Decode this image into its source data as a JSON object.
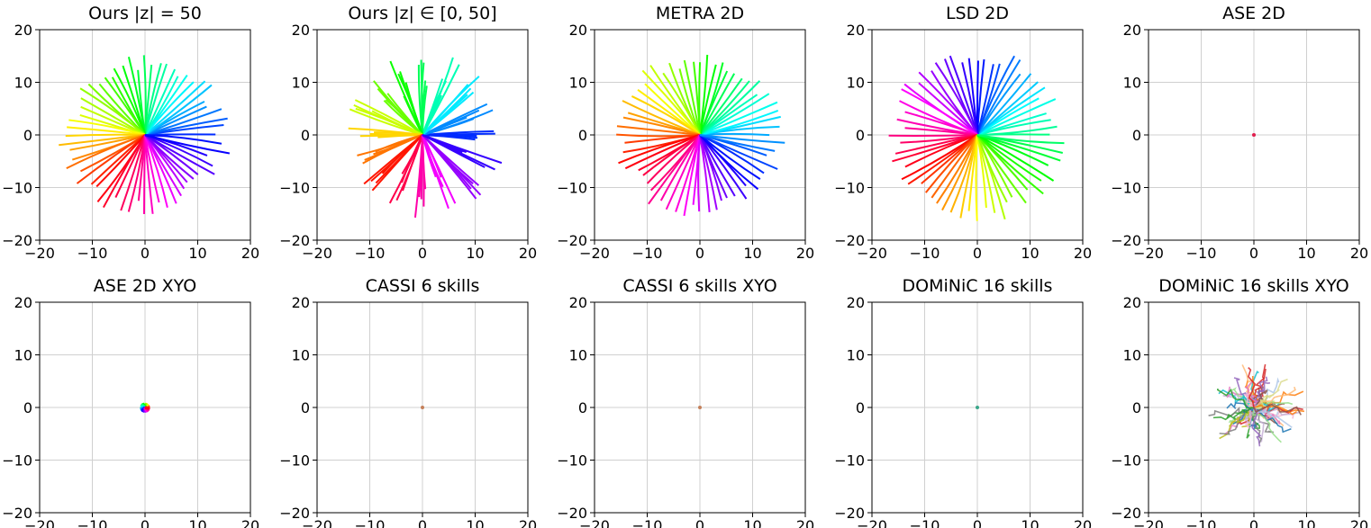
{
  "figure": {
    "panel_count": 10,
    "axis_ticks": [
      -20,
      -10,
      0,
      10,
      20
    ],
    "tick_labels": [
      "−20",
      "−10",
      "0",
      "10",
      "20"
    ]
  },
  "chart_data": [
    {
      "id": "ours-z50",
      "title": "Ours |z| = 50",
      "type": "line",
      "description_of_marks": "radial trajectories from origin, hue by direction",
      "xlim": [
        -20,
        20
      ],
      "ylim": [
        -20,
        20
      ],
      "grid": true,
      "fan": {
        "n": 60,
        "rmin": 12,
        "rmax": 16.5,
        "hue_offset": 230,
        "hue_dir": -1,
        "spread": 1,
        "coverage": [
          0,
          360
        ],
        "palette": "hue"
      }
    },
    {
      "id": "ours-z0-50",
      "title": "Ours |z| ∈ [0, 50]",
      "type": "line",
      "xlim": [
        -20,
        20
      ],
      "ylim": [
        -20,
        20
      ],
      "grid": true,
      "fan": {
        "n": 16,
        "rmin": 8,
        "rmax": 16,
        "hue_offset": 230,
        "hue_dir": -1,
        "spread": 5,
        "coverage": [
          0,
          360
        ],
        "palette": "hue",
        "bundle": 5
      }
    },
    {
      "id": "metra-2d",
      "title": "METRA 2D",
      "type": "line",
      "xlim": [
        -20,
        20
      ],
      "ylim": [
        -20,
        20
      ],
      "grid": true,
      "fan": {
        "n": 60,
        "rmin": 13,
        "rmax": 16.5,
        "hue_offset": 200,
        "hue_dir": -1,
        "spread": 1,
        "coverage": [
          0,
          360
        ],
        "palette": "hue"
      }
    },
    {
      "id": "lsd-2d",
      "title": "LSD 2D",
      "type": "line",
      "xlim": [
        -20,
        20
      ],
      "ylim": [
        -20,
        20
      ],
      "grid": true,
      "fan": {
        "n": 60,
        "rmin": 13,
        "rmax": 17,
        "hue_offset": 150,
        "hue_dir": 1,
        "spread": 1,
        "coverage": [
          0,
          360
        ],
        "palette": "hue"
      }
    },
    {
      "id": "ase-2d",
      "title": "ASE 2D",
      "type": "scatter",
      "xlim": [
        -20,
        20
      ],
      "ylim": [
        -20,
        20
      ],
      "grid": true,
      "blob": {
        "x": 0,
        "y": 0,
        "r": 0.35,
        "colors": [
          "#e0204f"
        ]
      }
    },
    {
      "id": "ase-2d-xyo",
      "title": "ASE 2D XYO",
      "type": "line",
      "xlim": [
        -20,
        20
      ],
      "ylim": [
        -20,
        20
      ],
      "grid": true,
      "fan": {
        "n": 60,
        "rmin": 0.7,
        "rmax": 1.0,
        "hue_offset": 0,
        "hue_dir": 1,
        "spread": 1,
        "coverage": [
          0,
          360
        ],
        "palette": "hue",
        "width": 3
      }
    },
    {
      "id": "cassi-6",
      "title": "CASSI 6 skills",
      "type": "scatter",
      "xlim": [
        -20,
        20
      ],
      "ylim": [
        -20,
        20
      ],
      "grid": true,
      "blob": {
        "x": 0,
        "y": 0,
        "r": 0.3,
        "colors": [
          "#c4805a"
        ]
      }
    },
    {
      "id": "cassi-6-xyo",
      "title": "CASSI 6 skills XYO",
      "type": "scatter",
      "xlim": [
        -20,
        20
      ],
      "ylim": [
        -20,
        20
      ],
      "grid": true,
      "blob": {
        "x": 0,
        "y": 0,
        "r": 0.3,
        "colors": [
          "#c4805a"
        ]
      }
    },
    {
      "id": "dominic-16",
      "title": "DOMiNiC 16 skills",
      "type": "scatter",
      "xlim": [
        -20,
        20
      ],
      "ylim": [
        -20,
        20
      ],
      "grid": true,
      "blob": {
        "x": 0,
        "y": 0,
        "r": 0.25,
        "colors": [
          "#3aa68a"
        ]
      }
    },
    {
      "id": "dominic-16-xyo",
      "title": "DOMiNiC 16 skills XYO",
      "type": "line",
      "xlim": [
        -20,
        20
      ],
      "ylim": [
        -20,
        20
      ],
      "grid": true,
      "wiggle": {
        "n": 70,
        "rmin": 3,
        "rmax": 10.5,
        "colors": [
          "#1f77b4",
          "#ff7f0e",
          "#2ca02c",
          "#d62728",
          "#9467bd",
          "#8c564b",
          "#e377c2",
          "#7f7f7f",
          "#bcbd22",
          "#17becf",
          "#aec7e8",
          "#ffbb78",
          "#98df8a",
          "#c5b0d5",
          "#f7b6d2",
          "#dbdb8d"
        ]
      }
    }
  ]
}
